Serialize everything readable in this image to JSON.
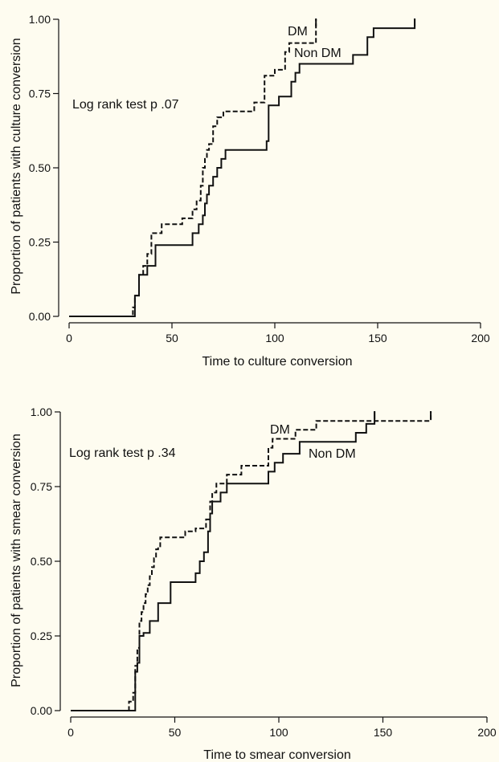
{
  "chart_data": [
    {
      "type": "line",
      "title": "",
      "xlabel": "Time to culture conversion",
      "ylabel": "Proportion of patients with culture conversion",
      "xlim": [
        0,
        200
      ],
      "ylim": [
        0,
        1
      ],
      "xticks": [
        0,
        50,
        100,
        150,
        200
      ],
      "xtick_labels": [
        "0",
        "50",
        "100",
        "150",
        "200"
      ],
      "yticks": [
        0,
        0.25,
        0.5,
        0.75,
        1.0
      ],
      "ytick_labels": [
        "0.00",
        "0.25",
        "0.50",
        "0.75",
        "1.00"
      ],
      "annotation": "Log rank test p .07",
      "grid": false,
      "series": [
        {
          "name": "DM",
          "style": "dashed",
          "color": "#111111",
          "x": [
            0,
            30,
            31,
            32,
            34,
            36,
            38,
            40,
            45,
            55,
            60,
            62,
            64,
            65,
            66,
            67,
            68,
            70,
            72,
            75,
            90,
            95,
            100,
            105,
            107,
            110,
            120
          ],
          "y": [
            0,
            0,
            0.03,
            0.07,
            0.14,
            0.17,
            0.21,
            0.28,
            0.31,
            0.33,
            0.36,
            0.39,
            0.44,
            0.5,
            0.53,
            0.56,
            0.58,
            0.64,
            0.67,
            0.69,
            0.72,
            0.81,
            0.83,
            0.89,
            0.92,
            0.92,
            1.0
          ]
        },
        {
          "name": "Non DM",
          "style": "solid",
          "color": "#111111",
          "x": [
            0,
            30,
            32,
            34,
            38,
            42,
            58,
            60,
            63,
            65,
            66,
            67,
            68,
            70,
            72,
            74,
            76,
            78,
            96,
            97,
            100,
            102,
            105,
            108,
            110,
            112,
            135,
            138,
            145,
            148,
            168
          ],
          "y": [
            0,
            0,
            0.07,
            0.14,
            0.17,
            0.24,
            0.24,
            0.28,
            0.31,
            0.34,
            0.38,
            0.41,
            0.44,
            0.47,
            0.5,
            0.53,
            0.56,
            0.56,
            0.59,
            0.71,
            0.71,
            0.74,
            0.74,
            0.79,
            0.82,
            0.85,
            0.85,
            0.88,
            0.94,
            0.97,
            1.0
          ]
        }
      ]
    },
    {
      "type": "line",
      "title": "",
      "xlabel": "Time to smear conversion",
      "ylabel": "Proportion of patients with smear conversion",
      "xlim": [
        0,
        200
      ],
      "ylim": [
        0,
        1
      ],
      "xticks": [
        0,
        50,
        100,
        150,
        200
      ],
      "xtick_labels": [
        "0",
        "50",
        "100",
        "150",
        "200"
      ],
      "yticks": [
        0,
        0.25,
        0.5,
        0.75,
        1.0
      ],
      "ytick_labels": [
        "0.00",
        "0.25",
        "0.50",
        "0.75",
        "1.00"
      ],
      "annotation": "Log rank test p .34",
      "grid": false,
      "series": [
        {
          "name": "DM",
          "style": "dashed",
          "color": "#111111",
          "x": [
            0,
            28,
            30,
            31,
            32,
            33,
            34,
            35,
            36,
            37,
            38,
            39,
            40,
            41,
            42,
            43,
            55,
            60,
            65,
            67,
            68,
            70,
            72,
            75,
            78,
            82,
            95,
            97,
            100,
            108,
            118,
            145,
            173
          ],
          "y": [
            0,
            0.03,
            0.06,
            0.15,
            0.21,
            0.3,
            0.33,
            0.36,
            0.39,
            0.42,
            0.45,
            0.48,
            0.51,
            0.54,
            0.55,
            0.58,
            0.6,
            0.61,
            0.64,
            0.7,
            0.73,
            0.76,
            0.76,
            0.79,
            0.79,
            0.82,
            0.88,
            0.91,
            0.91,
            0.94,
            0.97,
            0.97,
            1.0
          ]
        },
        {
          "name": "Non DM",
          "style": "solid",
          "color": "#111111",
          "x": [
            0,
            30,
            31,
            32,
            33,
            35,
            38,
            42,
            48,
            60,
            62,
            64,
            66,
            67,
            68,
            72,
            75,
            78,
            95,
            98,
            102,
            105,
            110,
            120,
            137,
            142,
            146
          ],
          "y": [
            0,
            0,
            0.13,
            0.16,
            0.25,
            0.26,
            0.3,
            0.36,
            0.43,
            0.46,
            0.5,
            0.53,
            0.6,
            0.66,
            0.7,
            0.73,
            0.76,
            0.76,
            0.8,
            0.83,
            0.86,
            0.86,
            0.9,
            0.9,
            0.93,
            0.96,
            1.0
          ]
        }
      ]
    }
  ]
}
